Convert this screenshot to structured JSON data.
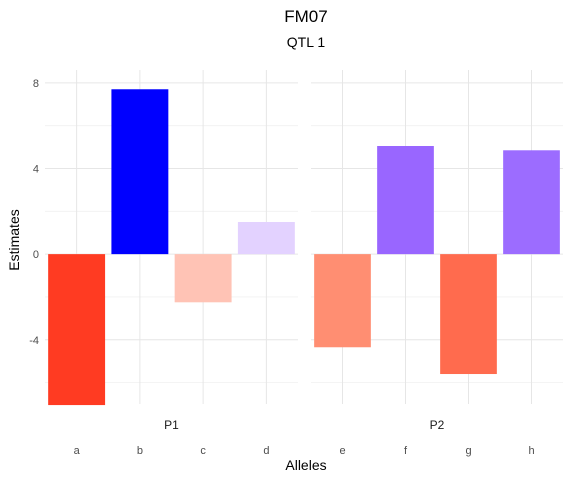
{
  "chart_data": {
    "type": "bar",
    "title": "FM07",
    "subtitle": "QTL 1",
    "xlabel": "Alleles",
    "ylabel": "Estimates",
    "ylim": [
      -7.0,
      8.6
    ],
    "yticks": [
      -4,
      0,
      4,
      8
    ],
    "grid": true,
    "facets": [
      {
        "label": "P1",
        "categories": [
          "a",
          "b",
          "c",
          "d"
        ],
        "values": [
          -7.05,
          7.7,
          -2.25,
          1.5
        ],
        "colors": [
          "#ff3b22",
          "#0000ff",
          "#ffc3b5",
          "#e3d2ff"
        ]
      },
      {
        "label": "P2",
        "categories": [
          "e",
          "f",
          "g",
          "h"
        ],
        "values": [
          -4.35,
          5.05,
          -5.6,
          4.85
        ],
        "colors": [
          "#ff8e72",
          "#9966ff",
          "#ff6b4e",
          "#9c6cff"
        ]
      }
    ]
  }
}
